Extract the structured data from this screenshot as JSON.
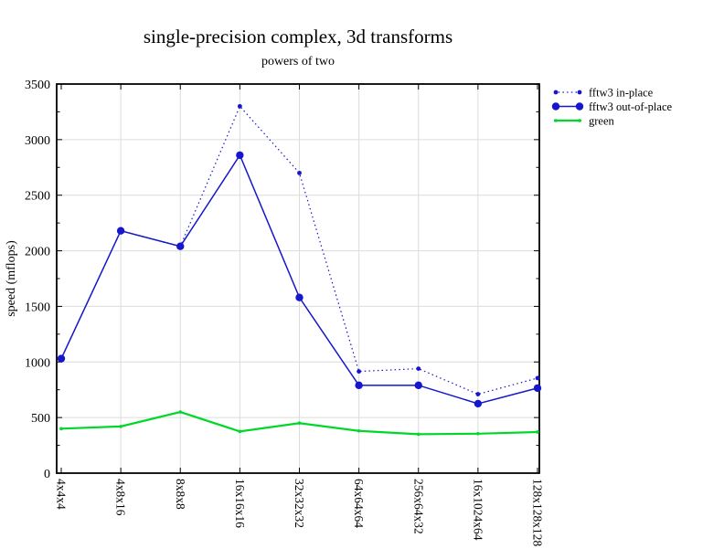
{
  "figure": {
    "title": "single-precision complex, 3d transforms",
    "subtitle": "powers of two"
  },
  "chart_data": {
    "type": "line",
    "title": "single-precision complex, 3d transforms",
    "subtitle": "powers of two",
    "xlabel": "",
    "ylabel": "speed (mflops)",
    "ylim": [
      0,
      3500
    ],
    "ytick_interval": 500,
    "ytick_minor_interval": 250,
    "ytick_labels": [
      "0",
      "500",
      "1000",
      "1500",
      "2000",
      "2500",
      "3000",
      "3500"
    ],
    "grid": true,
    "legend_position": "outside-right-top",
    "categories": [
      "4x4x4",
      "4x8x16",
      "8x8x8",
      "16x16x16",
      "32x32x32",
      "64x64x64",
      "256x64x32",
      "16x1024x64",
      "128x128x128"
    ],
    "series": [
      {
        "name": "fftw3 in-place",
        "color": "#1616cd",
        "line_style": "dotted",
        "marker": "circle",
        "marker_radius": 2.4,
        "line_width": 1.2,
        "values": [
          1030,
          2180,
          2040,
          3300,
          2700,
          915,
          940,
          710,
          855
        ]
      },
      {
        "name": "fftw3 out-of-place",
        "color": "#1616cd",
        "line_style": "solid",
        "marker": "circle",
        "marker_radius": 4.2,
        "line_width": 1.5,
        "values": [
          1030,
          2180,
          2040,
          2860,
          1580,
          790,
          790,
          625,
          765
        ]
      },
      {
        "name": "green",
        "color": "#00d828",
        "line_style": "solid",
        "marker": "circle",
        "marker_radius": 1.8,
        "line_width": 2.2,
        "values": [
          400,
          420,
          550,
          375,
          450,
          380,
          350,
          355,
          370
        ]
      }
    ],
    "colors": {
      "frame": "#000000",
      "grid": "#dcdcdc",
      "background": "#ffffff"
    }
  }
}
